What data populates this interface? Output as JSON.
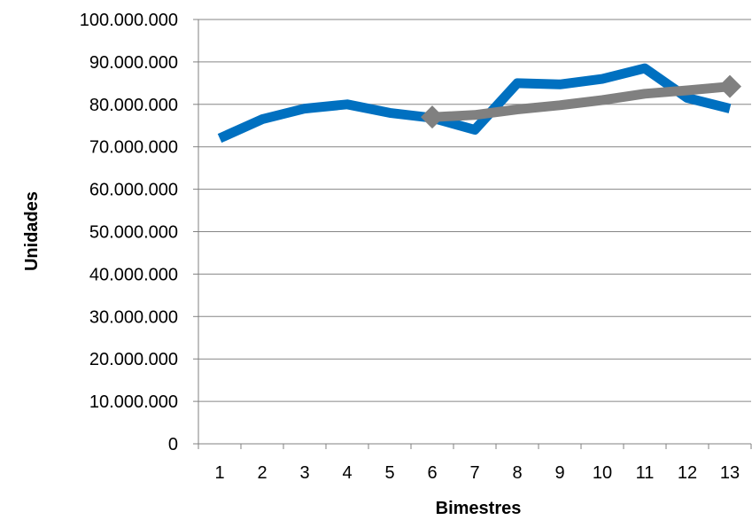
{
  "chart_data": {
    "type": "line",
    "title": "",
    "xlabel": "Bimestres",
    "ylabel": "Unidades",
    "categories": [
      "1",
      "2",
      "3",
      "4",
      "5",
      "6",
      "7",
      "8",
      "9",
      "10",
      "11",
      "12",
      "13"
    ],
    "ylim": [
      0,
      100000000
    ],
    "yticks": [
      0,
      10000000,
      20000000,
      30000000,
      40000000,
      50000000,
      60000000,
      70000000,
      80000000,
      90000000,
      100000000
    ],
    "ytick_labels": [
      "0",
      "10.000.000",
      "20.000.000",
      "30.000.000",
      "40.000.000",
      "50.000.000",
      "60.000.000",
      "70.000.000",
      "80.000.000",
      "90.000.000",
      "100.000.000"
    ],
    "grid": true,
    "legend": "none",
    "series": [
      {
        "color": "#0070C0",
        "marker": "none",
        "values": [
          72000000,
          76500000,
          79000000,
          80000000,
          78000000,
          76800000,
          74000000,
          85000000,
          84700000,
          86000000,
          88500000,
          81500000,
          79000000
        ]
      },
      {
        "color": "#808080",
        "marker": "diamond",
        "values": [
          null,
          null,
          null,
          null,
          null,
          77000000,
          77500000,
          78800000,
          79800000,
          81000000,
          82500000,
          83300000,
          84200000
        ]
      }
    ]
  }
}
